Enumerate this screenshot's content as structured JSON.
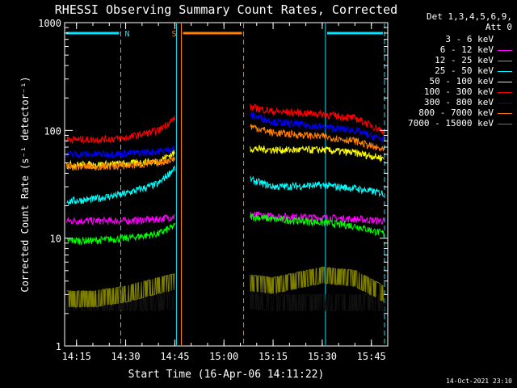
{
  "chart_data": {
    "type": "line",
    "title": "RHESSI Observing Summary Count Rates, Corrected",
    "xlabel": "Start Time (16-Apr-06 14:11:22)",
    "ylabel": "Corrected Count Rate (s⁻¹ detector⁻¹)",
    "yscale": "log",
    "ylim": [
      1,
      1000
    ],
    "xlim": [
      "14:11:22",
      "15:50:00"
    ],
    "x_ticks": [
      "14:15",
      "14:30",
      "14:45",
      "15:00",
      "15:15",
      "15:30",
      "15:45"
    ],
    "y_ticks": [
      "1",
      "10",
      "100",
      "1000"
    ],
    "grid": false,
    "legend_header": [
      "Det 1,3,4,5,6,9,",
      "Att 0"
    ],
    "legend_position": "right",
    "timestamp": "14-Oct-2021 23:10",
    "flags": [
      {
        "label": "N",
        "color": "#00e5ff",
        "segments": [
          [
            "14:11:22",
            "14:28:30"
          ],
          [
            "15:31:00",
            "15:49:00"
          ]
        ]
      },
      {
        "label": "S",
        "color": "#ff7f00",
        "segments": [
          [
            "14:47:00",
            "15:06:00"
          ]
        ]
      }
    ],
    "markers": [
      {
        "time": "14:28:30",
        "color": "#00e5ff",
        "style": "dashed"
      },
      {
        "time": "14:45:30",
        "color": "#00e5ff",
        "style": "solid"
      },
      {
        "time": "14:47:00",
        "color": "#ff7f00",
        "style": "solid"
      },
      {
        "time": "15:06:00",
        "color": "#ff7f00",
        "style": "dashed"
      },
      {
        "time": "15:31:00",
        "color": "#00e5ff",
        "style": "solid"
      },
      {
        "time": "15:49:00",
        "color": "#00e5ff",
        "style": "dashed"
      }
    ],
    "series": [
      {
        "name": "3 - 6 keV",
        "color": "#000000",
        "x": [
          "14:12",
          "14:20",
          "14:30",
          "14:40",
          "14:45",
          "15:08",
          "15:15",
          "15:30",
          "15:40",
          "15:49"
        ],
        "y": [
          2.5,
          2.5,
          2.5,
          2.5,
          2.6,
          2.6,
          2.5,
          2.5,
          2.5,
          2.5
        ]
      },
      {
        "name": "6 - 12 keV",
        "color": "#ff00ff",
        "x": [
          "14:12",
          "14:20",
          "14:30",
          "14:40",
          "14:45",
          "15:08",
          "15:15",
          "15:30",
          "15:40",
          "15:49"
        ],
        "y": [
          14.5,
          14.5,
          14.5,
          15,
          16,
          16.5,
          16,
          15.5,
          15,
          14.5
        ]
      },
      {
        "name": "12 - 25 keV",
        "color": "#00ff00",
        "x": [
          "14:12",
          "14:20",
          "14:30",
          "14:40",
          "14:45",
          "15:08",
          "15:15",
          "15:30",
          "15:40",
          "15:49"
        ],
        "y": [
          9.5,
          9.5,
          10,
          11,
          13,
          16,
          15,
          14,
          13,
          11
        ]
      },
      {
        "name": "25 - 50 keV",
        "color": "#00ffff",
        "x": [
          "14:12",
          "14:20",
          "14:30",
          "14:40",
          "14:45",
          "15:08",
          "15:15",
          "15:30",
          "15:40",
          "15:49"
        ],
        "y": [
          22,
          23,
          26,
          32,
          45,
          35,
          30,
          31,
          29,
          26
        ]
      },
      {
        "name": "50 - 100 keV",
        "color": "#ffff00",
        "x": [
          "14:12",
          "14:20",
          "14:30",
          "14:40",
          "14:45",
          "15:08",
          "15:15",
          "15:30",
          "15:40",
          "15:49"
        ],
        "y": [
          48,
          48,
          49,
          52,
          62,
          68,
          66,
          66,
          62,
          55
        ]
      },
      {
        "name": "100 - 300 keV",
        "color": "#ff0000",
        "x": [
          "14:12",
          "14:20",
          "14:30",
          "14:40",
          "14:45",
          "15:08",
          "15:15",
          "15:30",
          "15:40",
          "15:49"
        ],
        "y": [
          83,
          82,
          85,
          100,
          130,
          165,
          150,
          142,
          130,
          98
        ]
      },
      {
        "name": "300 - 800 keV",
        "color": "#0000ff",
        "x": [
          "14:12",
          "14:20",
          "14:30",
          "14:40",
          "14:45",
          "15:08",
          "15:15",
          "15:30",
          "15:40",
          "15:49"
        ],
        "y": [
          60,
          60,
          61,
          64,
          68,
          140,
          120,
          108,
          100,
          82
        ]
      },
      {
        "name": "800 - 7000 keV",
        "color": "#ff7f00",
        "x": [
          "14:12",
          "14:20",
          "14:30",
          "14:40",
          "14:45",
          "15:08",
          "15:15",
          "15:30",
          "15:40",
          "15:49"
        ],
        "y": [
          46,
          46,
          47,
          50,
          55,
          110,
          95,
          88,
          80,
          65
        ]
      },
      {
        "name": "7000 - 15000 keV",
        "color": "#7f7f00",
        "x": [
          "14:12",
          "14:20",
          "14:30",
          "14:40",
          "14:45",
          "15:08",
          "15:15",
          "15:30",
          "15:40",
          "15:49"
        ],
        "y": [
          2.7,
          2.7,
          3.0,
          3.6,
          3.9,
          3.8,
          3.6,
          4.5,
          4.2,
          3.0
        ]
      }
    ]
  }
}
